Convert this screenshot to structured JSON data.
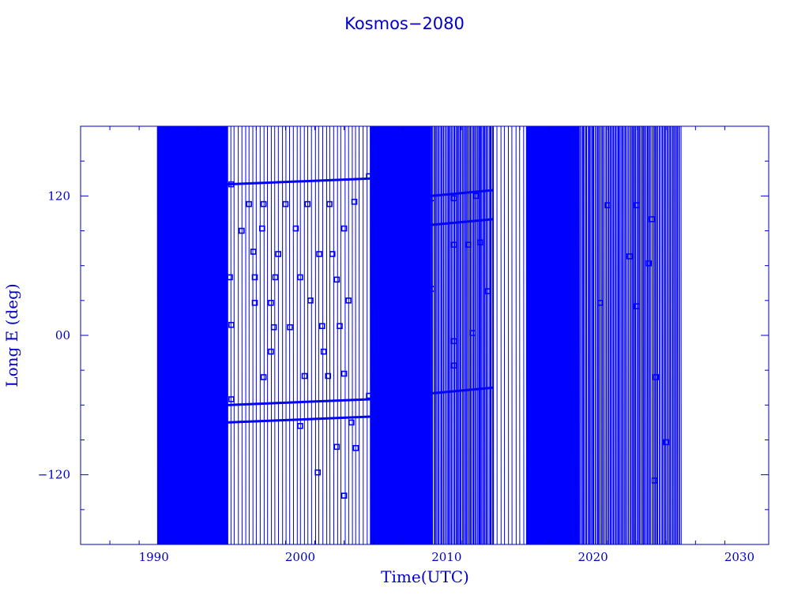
{
  "chart_data": {
    "type": "line",
    "title": "Kosmos−2080",
    "xlabel": "Time(UTC)",
    "ylabel": "Long E (deg)",
    "xlim": [
      1985,
      2032
    ],
    "ylim": [
      -180,
      180
    ],
    "x_ticks": [
      1990,
      2000,
      2010,
      2020,
      2030
    ],
    "x_tick_labels": [
      "1990",
      "2000",
      "2010",
      "2020",
      "2030"
    ],
    "y_ticks": [
      -120,
      0,
      120
    ],
    "y_tick_labels": [
      "−120",
      "00",
      "120"
    ],
    "grid": false,
    "legend": "none",
    "color": "#0000ff",
    "series": [
      {
        "segments": [
          {
            "x": [
              1990.3,
              1995.0
            ],
            "y_range": [
              -180,
              180
            ],
            "density": "dense"
          },
          {
            "x": [
              1995.0,
              2004.8
            ],
            "y_range": [
              -180,
              180
            ],
            "density": "sparse",
            "drift_lines_y": [
              130,
              -60,
              -75
            ]
          },
          {
            "x": [
              2004.8,
              2008.9
            ],
            "y_range": [
              -180,
              180
            ],
            "density": "dense"
          },
          {
            "x": [
              2008.9,
              2013.2
            ],
            "y_range": [
              -180,
              180
            ],
            "density": "medium",
            "drift_lines_y": [
              120,
              95,
              -50
            ]
          },
          {
            "x": [
              2013.2,
              2015.5
            ],
            "y_range": [
              -180,
              180
            ],
            "density": "sparse"
          },
          {
            "x": [
              2015.5,
              2019.0
            ],
            "y_range": [
              -180,
              180
            ],
            "density": "dense"
          },
          {
            "x": [
              2019.0,
              2026.0
            ],
            "y_range": [
              -180,
              180
            ],
            "density": "medium"
          }
        ],
        "points": [
          {
            "x": 1995.3,
            "y": 130
          },
          {
            "x": 2004.7,
            "y": 137
          },
          {
            "x": 1995.3,
            "y": -55
          },
          {
            "x": 2004.7,
            "y": -52
          },
          {
            "x": 1996.5,
            "y": 113
          },
          {
            "x": 1997.5,
            "y": 113
          },
          {
            "x": 1999.0,
            "y": 113
          },
          {
            "x": 2000.5,
            "y": 113
          },
          {
            "x": 2002.0,
            "y": 113
          },
          {
            "x": 2003.7,
            "y": 115
          },
          {
            "x": 1996.0,
            "y": 90
          },
          {
            "x": 1997.4,
            "y": 92
          },
          {
            "x": 1999.7,
            "y": 92
          },
          {
            "x": 2003.0,
            "y": 92
          },
          {
            "x": 1996.8,
            "y": 72
          },
          {
            "x": 1998.5,
            "y": 70
          },
          {
            "x": 2001.3,
            "y": 70
          },
          {
            "x": 2002.2,
            "y": 70
          },
          {
            "x": 1995.2,
            "y": 50
          },
          {
            "x": 1996.9,
            "y": 50
          },
          {
            "x": 1998.3,
            "y": 50
          },
          {
            "x": 2000.0,
            "y": 50
          },
          {
            "x": 2002.5,
            "y": 48
          },
          {
            "x": 1996.9,
            "y": 28
          },
          {
            "x": 1998.0,
            "y": 28
          },
          {
            "x": 2000.7,
            "y": 30
          },
          {
            "x": 2003.3,
            "y": 30
          },
          {
            "x": 1995.3,
            "y": 9
          },
          {
            "x": 1998.2,
            "y": 7
          },
          {
            "x": 1999.3,
            "y": 7
          },
          {
            "x": 2001.5,
            "y": 8
          },
          {
            "x": 2002.7,
            "y": 8
          },
          {
            "x": 1998.0,
            "y": -14
          },
          {
            "x": 2001.6,
            "y": -14
          },
          {
            "x": 1997.5,
            "y": -36
          },
          {
            "x": 2000.3,
            "y": -35
          },
          {
            "x": 2001.9,
            "y": -35
          },
          {
            "x": 2003.0,
            "y": -33
          },
          {
            "x": 2000.0,
            "y": -78
          },
          {
            "x": 2003.5,
            "y": -75
          },
          {
            "x": 2003.8,
            "y": -97
          },
          {
            "x": 2002.5,
            "y": -96
          },
          {
            "x": 2001.2,
            "y": -118
          },
          {
            "x": 2003.0,
            "y": -138
          },
          {
            "x": 2009.0,
            "y": 118
          },
          {
            "x": 2010.5,
            "y": 118
          },
          {
            "x": 2012.0,
            "y": 120
          },
          {
            "x": 2010.5,
            "y": 78
          },
          {
            "x": 2011.5,
            "y": 78
          },
          {
            "x": 2012.3,
            "y": 80
          },
          {
            "x": 2009.0,
            "y": 40
          },
          {
            "x": 2012.8,
            "y": 38
          },
          {
            "x": 2010.5,
            "y": -5
          },
          {
            "x": 2011.8,
            "y": 2
          },
          {
            "x": 2010.5,
            "y": -26
          },
          {
            "x": 2021.0,
            "y": 112
          },
          {
            "x": 2023.0,
            "y": 112
          },
          {
            "x": 2024.0,
            "y": 100
          },
          {
            "x": 2022.5,
            "y": 68
          },
          {
            "x": 2023.8,
            "y": 62
          },
          {
            "x": 2020.5,
            "y": 28
          },
          {
            "x": 2023.0,
            "y": 25
          },
          {
            "x": 2024.3,
            "y": -36
          },
          {
            "x": 2025.0,
            "y": -92
          },
          {
            "x": 2024.2,
            "y": -125
          }
        ]
      }
    ]
  }
}
